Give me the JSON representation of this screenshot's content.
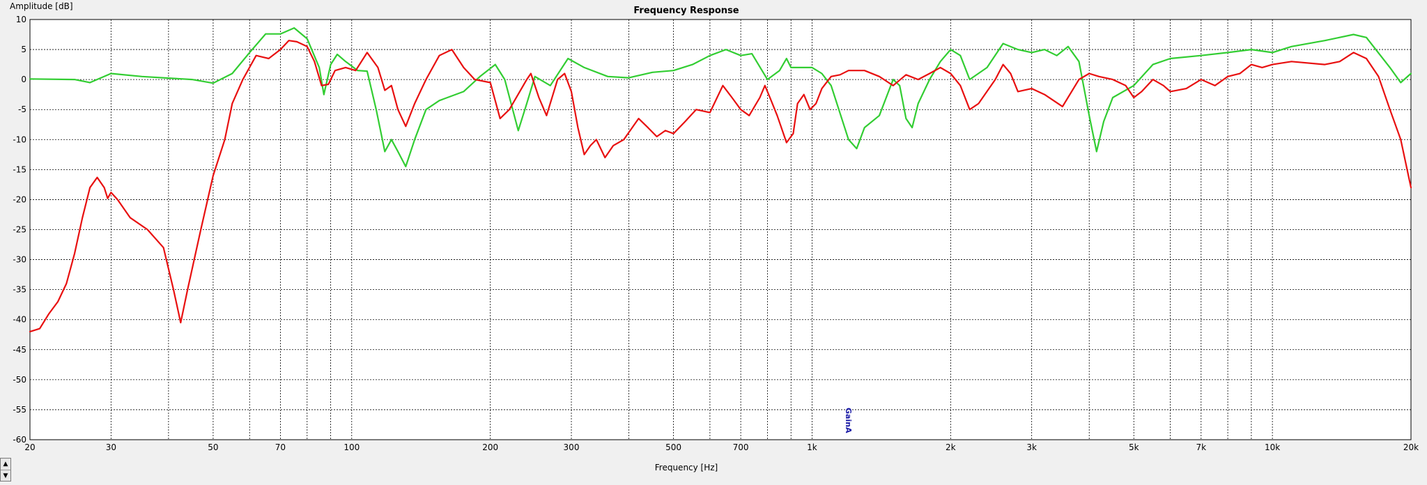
{
  "chart_data": {
    "type": "line",
    "title": "Frequency Response",
    "xlabel": "Frequency [Hz]",
    "ylabel": "Amplitude [dB]",
    "xscale": "log",
    "xlim": [
      20,
      20000
    ],
    "ylim": [
      -60,
      10
    ],
    "grid": true,
    "y_ticks": [
      10,
      5,
      0,
      -5,
      -10,
      -15,
      -20,
      -25,
      -30,
      -35,
      -40,
      -45,
      -50,
      -55,
      -60
    ],
    "x_ticks": [
      {
        "value": 20,
        "label": "20"
      },
      {
        "value": 30,
        "label": "30"
      },
      {
        "value": 40,
        "label": ""
      },
      {
        "value": 50,
        "label": "50"
      },
      {
        "value": 60,
        "label": ""
      },
      {
        "value": 70,
        "label": "70"
      },
      {
        "value": 80,
        "label": ""
      },
      {
        "value": 90,
        "label": ""
      },
      {
        "value": 100,
        "label": "100"
      },
      {
        "value": 200,
        "label": "200"
      },
      {
        "value": 300,
        "label": "300"
      },
      {
        "value": 400,
        "label": ""
      },
      {
        "value": 500,
        "label": "500"
      },
      {
        "value": 600,
        "label": ""
      },
      {
        "value": 700,
        "label": "700"
      },
      {
        "value": 800,
        "label": ""
      },
      {
        "value": 900,
        "label": ""
      },
      {
        "value": 1000,
        "label": "1k"
      },
      {
        "value": 2000,
        "label": "2k"
      },
      {
        "value": 3000,
        "label": "3k"
      },
      {
        "value": 4000,
        "label": ""
      },
      {
        "value": 5000,
        "label": "5k"
      },
      {
        "value": 6000,
        "label": ""
      },
      {
        "value": 7000,
        "label": "7k"
      },
      {
        "value": 8000,
        "label": ""
      },
      {
        "value": 9000,
        "label": ""
      },
      {
        "value": 10000,
        "label": "10k"
      },
      {
        "value": 20000,
        "label": "20k"
      }
    ],
    "marker": {
      "label": "GainA",
      "x": 1200,
      "color": "#1a1aa6"
    },
    "series": [
      {
        "color": "#32cd32",
        "points": [
          [
            20,
            0.1
          ],
          [
            25,
            0
          ],
          [
            27,
            -0.5
          ],
          [
            30,
            1
          ],
          [
            35,
            0.5
          ],
          [
            45,
            0
          ],
          [
            50,
            -0.6
          ],
          [
            55,
            1
          ],
          [
            60,
            4.5
          ],
          [
            65,
            7.6
          ],
          [
            70,
            7.6
          ],
          [
            75,
            8.6
          ],
          [
            80,
            6.8
          ],
          [
            85,
            2
          ],
          [
            87,
            -2.5
          ],
          [
            90,
            2.5
          ],
          [
            93,
            4.2
          ],
          [
            97,
            3
          ],
          [
            103,
            1.5
          ],
          [
            108,
            1.4
          ],
          [
            113,
            -5
          ],
          [
            118,
            -12
          ],
          [
            122,
            -10
          ],
          [
            126,
            -12
          ],
          [
            131,
            -14.5
          ],
          [
            137,
            -10
          ],
          [
            145,
            -5
          ],
          [
            155,
            -3.5
          ],
          [
            175,
            -2
          ],
          [
            190,
            0.5
          ],
          [
            205,
            2.5
          ],
          [
            215,
            0
          ],
          [
            230,
            -8.5
          ],
          [
            240,
            -4
          ],
          [
            250,
            0.5
          ],
          [
            270,
            -1
          ],
          [
            295,
            3.5
          ],
          [
            320,
            2
          ],
          [
            360,
            0.5
          ],
          [
            400,
            0.3
          ],
          [
            450,
            1.2
          ],
          [
            500,
            1.5
          ],
          [
            550,
            2.5
          ],
          [
            600,
            4
          ],
          [
            650,
            5
          ],
          [
            700,
            4
          ],
          [
            740,
            4.3
          ],
          [
            800,
            0
          ],
          [
            850,
            1.5
          ],
          [
            880,
            3.5
          ],
          [
            900,
            2
          ],
          [
            950,
            2
          ],
          [
            1000,
            2
          ],
          [
            1050,
            1
          ],
          [
            1100,
            -1
          ],
          [
            1200,
            -10
          ],
          [
            1250,
            -11.5
          ],
          [
            1300,
            -8
          ],
          [
            1400,
            -6
          ],
          [
            1500,
            0
          ],
          [
            1550,
            -1
          ],
          [
            1600,
            -6.5
          ],
          [
            1650,
            -8
          ],
          [
            1700,
            -4
          ],
          [
            1800,
            0
          ],
          [
            1900,
            3
          ],
          [
            2000,
            5
          ],
          [
            2100,
            4
          ],
          [
            2200,
            0
          ],
          [
            2400,
            2
          ],
          [
            2600,
            6
          ],
          [
            2800,
            5
          ],
          [
            3000,
            4.5
          ],
          [
            3200,
            5
          ],
          [
            3400,
            4
          ],
          [
            3600,
            5.5
          ],
          [
            3800,
            3
          ],
          [
            4000,
            -6
          ],
          [
            4150,
            -12
          ],
          [
            4300,
            -7
          ],
          [
            4500,
            -3
          ],
          [
            5000,
            -1
          ],
          [
            5500,
            2.5
          ],
          [
            6000,
            3.5
          ],
          [
            7000,
            4
          ],
          [
            8000,
            4.5
          ],
          [
            9000,
            5
          ],
          [
            10000,
            4.5
          ],
          [
            11000,
            5.5
          ],
          [
            13000,
            6.5
          ],
          [
            15000,
            7.5
          ],
          [
            16000,
            7
          ],
          [
            18000,
            2
          ],
          [
            19000,
            -0.5
          ],
          [
            20000,
            1
          ]
        ]
      },
      {
        "color": "#e81010",
        "points": [
          [
            20,
            -42
          ],
          [
            21,
            -41.5
          ],
          [
            22,
            -39
          ],
          [
            23,
            -37
          ],
          [
            24,
            -34
          ],
          [
            25,
            -29
          ],
          [
            26,
            -23
          ],
          [
            27,
            -18
          ],
          [
            28,
            -16.3
          ],
          [
            29,
            -18
          ],
          [
            29.5,
            -19.8
          ],
          [
            30,
            -18.8
          ],
          [
            31,
            -20
          ],
          [
            33,
            -23
          ],
          [
            36,
            -25
          ],
          [
            39,
            -28
          ],
          [
            41,
            -35
          ],
          [
            42.5,
            -40.5
          ],
          [
            44,
            -35
          ],
          [
            47,
            -25
          ],
          [
            50,
            -16
          ],
          [
            53,
            -10
          ],
          [
            55,
            -4
          ],
          [
            58,
            0
          ],
          [
            62,
            4
          ],
          [
            66,
            3.5
          ],
          [
            70,
            5
          ],
          [
            73,
            6.5
          ],
          [
            76,
            6.3
          ],
          [
            80,
            5.5
          ],
          [
            83,
            3
          ],
          [
            86,
            -1
          ],
          [
            89,
            -0.8
          ],
          [
            92,
            1.5
          ],
          [
            97,
            2
          ],
          [
            102,
            1.5
          ],
          [
            108,
            4.5
          ],
          [
            114,
            2
          ],
          [
            118,
            -1.8
          ],
          [
            122,
            -1
          ],
          [
            126,
            -5
          ],
          [
            131,
            -7.8
          ],
          [
            137,
            -4
          ],
          [
            145,
            0
          ],
          [
            155,
            4
          ],
          [
            165,
            5
          ],
          [
            175,
            2
          ],
          [
            185,
            0
          ],
          [
            200,
            -0.5
          ],
          [
            210,
            -6.5
          ],
          [
            220,
            -5
          ],
          [
            240,
            0
          ],
          [
            245,
            1
          ],
          [
            255,
            -3
          ],
          [
            265,
            -6
          ],
          [
            280,
            0
          ],
          [
            290,
            1
          ],
          [
            300,
            -2
          ],
          [
            310,
            -8
          ],
          [
            320,
            -12.5
          ],
          [
            330,
            -11
          ],
          [
            340,
            -10
          ],
          [
            355,
            -13
          ],
          [
            370,
            -11
          ],
          [
            390,
            -10
          ],
          [
            420,
            -6.5
          ],
          [
            440,
            -8
          ],
          [
            460,
            -9.5
          ],
          [
            480,
            -8.5
          ],
          [
            500,
            -9
          ],
          [
            530,
            -7
          ],
          [
            560,
            -5
          ],
          [
            600,
            -5.5
          ],
          [
            640,
            -1
          ],
          [
            670,
            -3
          ],
          [
            700,
            -5
          ],
          [
            730,
            -6
          ],
          [
            770,
            -3
          ],
          [
            790,
            -1
          ],
          [
            810,
            -3
          ],
          [
            840,
            -6
          ],
          [
            880,
            -10.5
          ],
          [
            910,
            -9
          ],
          [
            930,
            -4
          ],
          [
            960,
            -2.5
          ],
          [
            990,
            -5
          ],
          [
            1020,
            -4
          ],
          [
            1050,
            -1.5
          ],
          [
            1100,
            0.5
          ],
          [
            1150,
            0.8
          ],
          [
            1200,
            1.5
          ],
          [
            1300,
            1.5
          ],
          [
            1400,
            0.5
          ],
          [
            1500,
            -1
          ],
          [
            1600,
            0.8
          ],
          [
            1700,
            0
          ],
          [
            1800,
            1
          ],
          [
            1900,
            2
          ],
          [
            2000,
            1
          ],
          [
            2100,
            -1
          ],
          [
            2200,
            -5
          ],
          [
            2300,
            -4
          ],
          [
            2500,
            0
          ],
          [
            2600,
            2.5
          ],
          [
            2700,
            1
          ],
          [
            2800,
            -2
          ],
          [
            3000,
            -1.5
          ],
          [
            3200,
            -2.5
          ],
          [
            3500,
            -4.5
          ],
          [
            3800,
            0
          ],
          [
            4000,
            1
          ],
          [
            4200,
            0.5
          ],
          [
            4500,
            0
          ],
          [
            4800,
            -1
          ],
          [
            5000,
            -3
          ],
          [
            5200,
            -2
          ],
          [
            5500,
            0
          ],
          [
            5800,
            -1
          ],
          [
            6000,
            -2
          ],
          [
            6500,
            -1.5
          ],
          [
            7000,
            0
          ],
          [
            7500,
            -1
          ],
          [
            8000,
            0.5
          ],
          [
            8500,
            1
          ],
          [
            9000,
            2.5
          ],
          [
            9500,
            2
          ],
          [
            10000,
            2.5
          ],
          [
            11000,
            3
          ],
          [
            13000,
            2.5
          ],
          [
            14000,
            3
          ],
          [
            15000,
            4.5
          ],
          [
            16000,
            3.5
          ],
          [
            17000,
            0.5
          ],
          [
            18000,
            -5
          ],
          [
            19000,
            -10
          ],
          [
            20000,
            -18
          ]
        ]
      }
    ]
  }
}
